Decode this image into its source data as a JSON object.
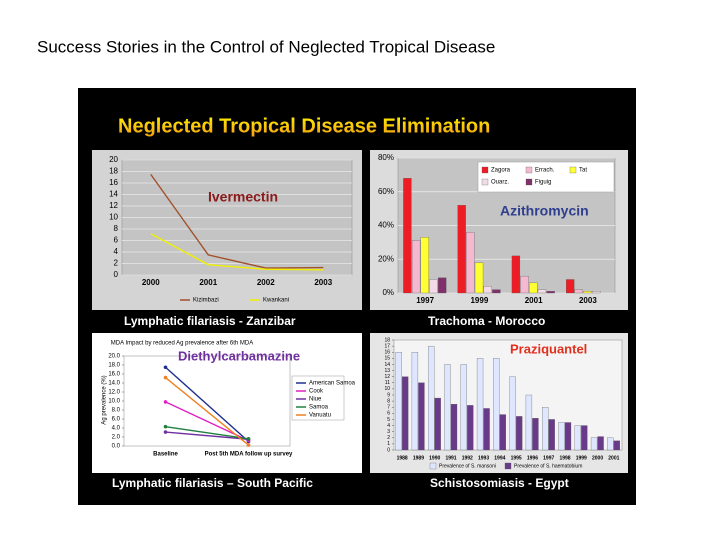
{
  "page_title": "Success Stories in the Control of Neglected Tropical Disease",
  "banner": "Neglected Tropical Disease Elimination",
  "chart_data": [
    {
      "type": "line",
      "annotation": "Ivermectin",
      "caption": "Lymphatic filariasis - Zanzibar",
      "categories": [
        "2000",
        "2001",
        "2002",
        "2003"
      ],
      "series": [
        {
          "name": "Kizimbazi",
          "color": "#a0522d",
          "values": [
            17.5,
            3.5,
            1.2,
            1.3
          ]
        },
        {
          "name": "Kwankani",
          "color": "#f0f000",
          "values": [
            7.2,
            1.8,
            1.0,
            0.9
          ]
        }
      ],
      "ylim": [
        0,
        20
      ],
      "yticks": [
        0,
        2,
        4,
        6,
        8,
        10,
        12,
        14,
        16,
        18,
        20
      ],
      "grid": true
    },
    {
      "type": "bar",
      "annotation": "Azithromycin",
      "caption": "Trachoma - Morocco",
      "categories": [
        "1997",
        "1999",
        "2001",
        "2003"
      ],
      "series": [
        {
          "name": "Zagora",
          "color": "#ee1c25",
          "values": [
            68,
            52,
            22,
            8
          ]
        },
        {
          "name": "Errach.",
          "color": "#f4b8d0",
          "values": [
            31,
            36,
            10,
            2
          ]
        },
        {
          "name": "Tat",
          "color": "#ffff33",
          "values": [
            33,
            18,
            6,
            1
          ]
        },
        {
          "name": "Ouarz.",
          "color": "#f2dbe6",
          "values": [
            8,
            4,
            2,
            1
          ]
        },
        {
          "name": "Figuig",
          "color": "#80306a",
          "values": [
            9,
            2,
            1,
            0
          ]
        }
      ],
      "ylim": [
        0,
        80
      ],
      "yticks": [
        {
          "value": 0,
          "label": "0%"
        },
        {
          "value": 20,
          "label": "20%"
        },
        {
          "value": 40,
          "label": "40%"
        },
        {
          "value": 60,
          "label": "60%"
        },
        {
          "value": 80,
          "label": "80%"
        }
      ],
      "grid": true
    },
    {
      "type": "line",
      "title": "MDA Impact by reduced Ag prevalence after 6th MDA",
      "annotation": "Diethylcarbamazine",
      "caption": "Lymphatic filariasis – South Pacific",
      "y_label": "Ag prevalence (%)",
      "categories": [
        "Baseline",
        "Post 5th MDA follow up survey"
      ],
      "series": [
        {
          "name": "American Samoa",
          "color": "#1f2f8f",
          "values": [
            17.5,
            1.0
          ]
        },
        {
          "name": "Cook",
          "color": "#e020c0",
          "values": [
            9.8,
            1.2
          ]
        },
        {
          "name": "Niue",
          "color": "#7030a0",
          "values": [
            3.1,
            1.5
          ]
        },
        {
          "name": "Samoa",
          "color": "#208040",
          "values": [
            4.3,
            1.6
          ]
        },
        {
          "name": "Vanuatu",
          "color": "#f08020",
          "values": [
            15.2,
            0.2
          ]
        }
      ],
      "ylim": [
        0,
        20
      ],
      "yticks": [
        {
          "value": 0,
          "label": "0.0"
        },
        {
          "value": 2,
          "label": "2.0"
        },
        {
          "value": 4,
          "label": "4.0"
        },
        {
          "value": 6,
          "label": "6.0"
        },
        {
          "value": 8,
          "label": "8.0"
        },
        {
          "value": 10,
          "label": "10.0"
        },
        {
          "value": 12,
          "label": "12.0"
        },
        {
          "value": 14,
          "label": "14.0"
        },
        {
          "value": 16,
          "label": "16.0"
        },
        {
          "value": 18,
          "label": "18.0"
        },
        {
          "value": 20,
          "label": "20.0"
        }
      ],
      "grid": false
    },
    {
      "type": "bar",
      "annotation": "Praziquantel",
      "caption": "Schistosomiasis - Egypt",
      "categories": [
        "1988",
        "1989",
        "1990",
        "1991",
        "1992",
        "1993",
        "1994",
        "1995",
        "1996",
        "1997",
        "1998",
        "1999",
        "2000",
        "2001"
      ],
      "series": [
        {
          "name": "Prevalence of S. mansoni",
          "color": "#dfe6ff",
          "values": [
            16,
            16,
            17,
            14,
            14,
            15,
            15,
            12,
            9,
            7,
            4.5,
            4,
            2,
            2
          ]
        },
        {
          "name": "Prevalence of S. haematobium",
          "color": "#6a3a8a",
          "values": [
            12,
            11,
            8.5,
            7.5,
            7.3,
            6.8,
            5.8,
            5.5,
            5.2,
            5,
            4.5,
            4,
            2.2,
            1.5
          ]
        }
      ],
      "ylim": [
        0,
        18
      ],
      "yticks": [
        0,
        1,
        2,
        3,
        4,
        5,
        6,
        7,
        8,
        9,
        10,
        11,
        12,
        13,
        14,
        15,
        16,
        17,
        18
      ],
      "grid": false
    }
  ]
}
